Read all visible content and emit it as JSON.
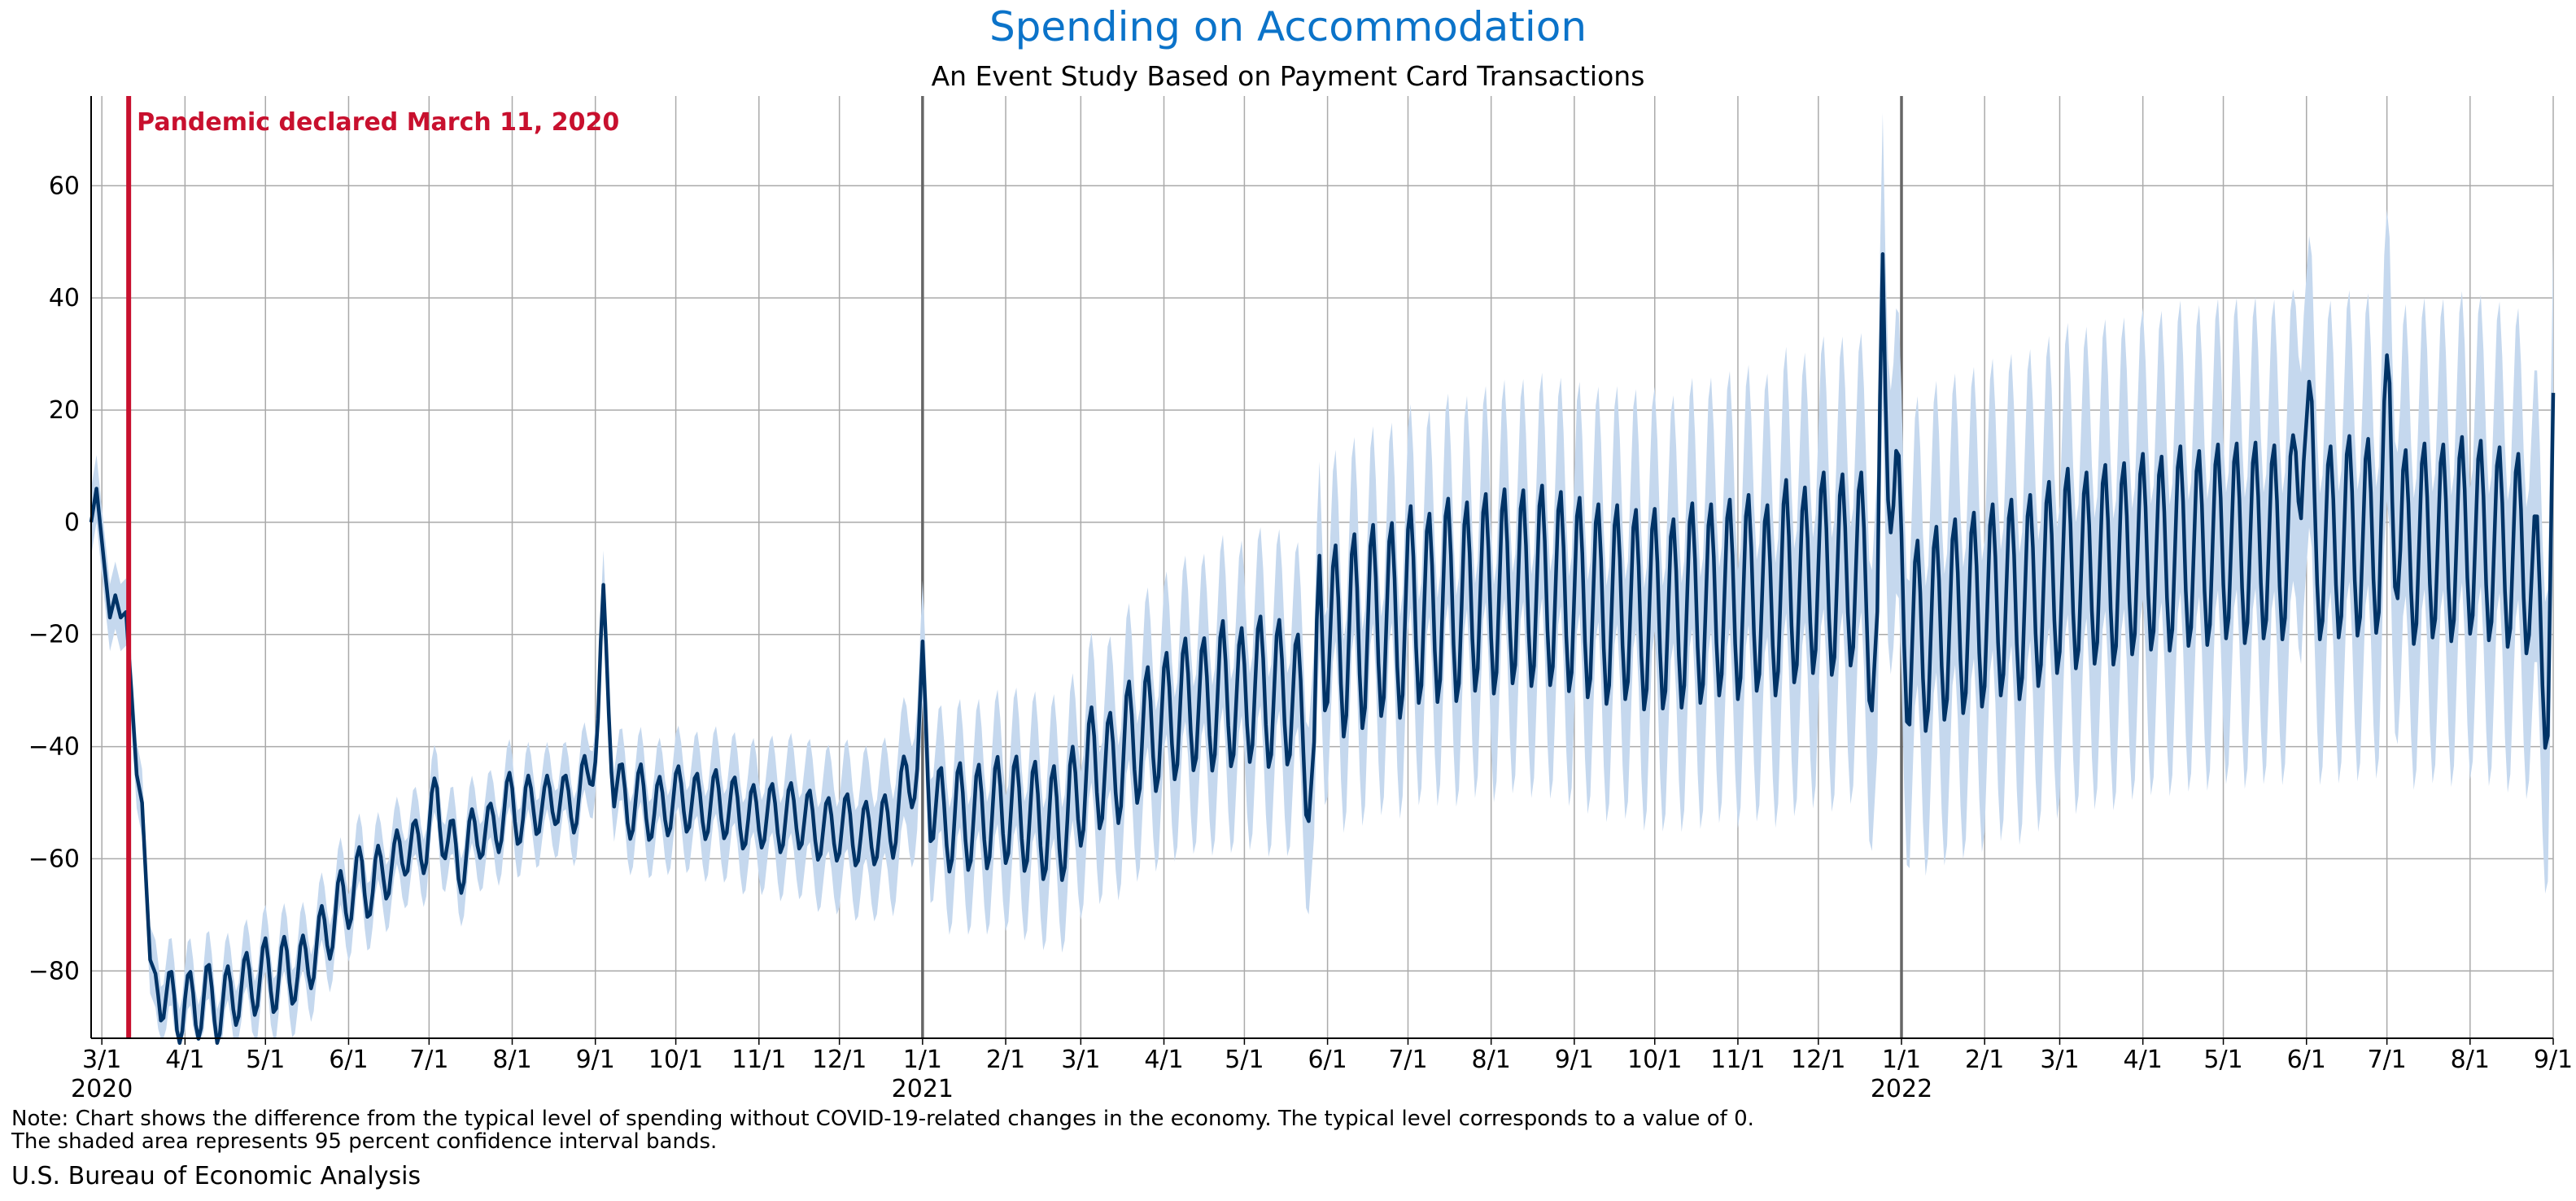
{
  "header": {
    "title": "Spending on Accommodation",
    "subtitle": "An Event Study Based on Payment Card Transactions"
  },
  "footer": {
    "note_line1": "Note: Chart shows the difference from the typical level of spending without COVID-19-related changes in the economy. The typical level corresponds to a value of 0.",
    "note_line2": "The shaded area represents 95 percent confidence interval bands.",
    "source": "U.S. Bureau of Economic Analysis"
  },
  "colors": {
    "title": "#0b73c9",
    "line": "#003366",
    "band": "#c5d8ee",
    "event_line": "#c8102e",
    "grid": "#aaaaaa",
    "year_line": "#666666"
  },
  "chart_data": {
    "type": "line",
    "title": "Spending on Accommodation",
    "subtitle": "An Event Study Based on Payment Card Transactions",
    "x_range": [
      "2020-02-26",
      "2022-09-01"
    ],
    "ylim": [
      -92,
      76
    ],
    "y_ticks": [
      -80,
      -60,
      -40,
      -20,
      0,
      20,
      40,
      60
    ],
    "x_ticks": [
      {
        "date": "2020-03-01",
        "label": "3/1",
        "year": "2020"
      },
      {
        "date": "2020-04-01",
        "label": "4/1"
      },
      {
        "date": "2020-05-01",
        "label": "5/1"
      },
      {
        "date": "2020-06-01",
        "label": "6/1"
      },
      {
        "date": "2020-07-01",
        "label": "7/1"
      },
      {
        "date": "2020-08-01",
        "label": "8/1"
      },
      {
        "date": "2020-09-01",
        "label": "9/1"
      },
      {
        "date": "2020-10-01",
        "label": "10/1"
      },
      {
        "date": "2020-11-01",
        "label": "11/1"
      },
      {
        "date": "2020-12-01",
        "label": "12/1"
      },
      {
        "date": "2021-01-01",
        "label": "1/1",
        "year": "2021"
      },
      {
        "date": "2021-02-01",
        "label": "2/1"
      },
      {
        "date": "2021-03-01",
        "label": "3/1"
      },
      {
        "date": "2021-04-01",
        "label": "4/1"
      },
      {
        "date": "2021-05-01",
        "label": "5/1"
      },
      {
        "date": "2021-06-01",
        "label": "6/1"
      },
      {
        "date": "2021-07-01",
        "label": "7/1"
      },
      {
        "date": "2021-08-01",
        "label": "8/1"
      },
      {
        "date": "2021-09-01",
        "label": "9/1"
      },
      {
        "date": "2021-10-01",
        "label": "10/1"
      },
      {
        "date": "2021-11-01",
        "label": "11/1"
      },
      {
        "date": "2021-12-01",
        "label": "12/1"
      },
      {
        "date": "2022-01-01",
        "label": "1/1",
        "year": "2022"
      },
      {
        "date": "2022-02-01",
        "label": "2/1"
      },
      {
        "date": "2022-03-01",
        "label": "3/1"
      },
      {
        "date": "2022-04-01",
        "label": "4/1"
      },
      {
        "date": "2022-05-01",
        "label": "5/1"
      },
      {
        "date": "2022-06-01",
        "label": "6/1"
      },
      {
        "date": "2022-07-01",
        "label": "7/1"
      },
      {
        "date": "2022-08-01",
        "label": "8/1"
      },
      {
        "date": "2022-09-01",
        "label": "9/1"
      }
    ],
    "year_lines": [
      "2021-01-01",
      "2022-01-01"
    ],
    "event": {
      "date": "2020-03-11",
      "label": "Pandemic declared March 11, 2020"
    },
    "grid": true,
    "series": [
      {
        "points": [
          [
            "2020-02-26",
            0
          ],
          [
            "2020-02-28",
            6
          ],
          [
            "2020-03-02",
            -8
          ],
          [
            "2020-03-04",
            -17
          ],
          [
            "2020-03-06",
            -13
          ],
          [
            "2020-03-08",
            -17
          ],
          [
            "2020-03-10",
            -16
          ],
          [
            "2020-03-12",
            -30
          ],
          [
            "2020-03-14",
            -45
          ],
          [
            "2020-03-16",
            -50
          ],
          [
            "2020-03-19",
            -78
          ],
          [
            "2020-03-23",
            -83
          ],
          [
            "2020-03-26",
            -85
          ],
          [
            "2020-03-29",
            -88
          ],
          [
            "2020-04-01",
            -85
          ],
          [
            "2020-04-05",
            -87
          ],
          [
            "2020-04-09",
            -84
          ],
          [
            "2020-04-13",
            -87
          ],
          [
            "2020-04-17",
            -85
          ],
          [
            "2020-04-22",
            -83
          ],
          [
            "2020-04-27",
            -82
          ],
          [
            "2020-05-01",
            -80
          ],
          [
            "2020-05-05",
            -82
          ],
          [
            "2020-05-09",
            -79
          ],
          [
            "2020-05-13",
            -81
          ],
          [
            "2020-05-17",
            -78
          ],
          [
            "2020-05-21",
            -75
          ],
          [
            "2020-05-25",
            -72
          ],
          [
            "2020-05-29",
            -68
          ],
          [
            "2020-06-02",
            -66
          ],
          [
            "2020-06-06",
            -63
          ],
          [
            "2020-06-10",
            -66
          ],
          [
            "2020-06-14",
            -61
          ],
          [
            "2020-06-18",
            -62
          ],
          [
            "2020-06-22",
            -57
          ],
          [
            "2020-06-26",
            -59
          ],
          [
            "2020-06-30",
            -56
          ],
          [
            "2020-07-04",
            -50
          ],
          [
            "2020-07-08",
            -57
          ],
          [
            "2020-07-12",
            -61
          ],
          [
            "2020-07-16",
            -58
          ],
          [
            "2020-07-20",
            -54
          ],
          [
            "2020-07-24",
            -56
          ],
          [
            "2020-07-28",
            -52
          ],
          [
            "2020-08-01",
            -50
          ],
          [
            "2020-08-05",
            -53
          ],
          [
            "2020-08-09",
            -49
          ],
          [
            "2020-08-13",
            -52
          ],
          [
            "2020-08-17",
            -48
          ],
          [
            "2020-08-21",
            -51
          ],
          [
            "2020-08-25",
            -49
          ],
          [
            "2020-08-29",
            -47
          ],
          [
            "2020-09-02",
            -35
          ],
          [
            "2020-09-04",
            -17
          ],
          [
            "2020-09-08",
            -46
          ],
          [
            "2020-09-13",
            -51
          ],
          [
            "2020-09-18",
            -49
          ],
          [
            "2020-09-23",
            -52
          ],
          [
            "2020-09-28",
            -50
          ],
          [
            "2020-10-04",
            -49
          ],
          [
            "2020-10-10",
            -51
          ],
          [
            "2020-10-16",
            -50
          ],
          [
            "2020-10-22",
            -51
          ],
          [
            "2020-10-28",
            -53
          ],
          [
            "2020-11-03",
            -52
          ],
          [
            "2020-11-09",
            -53
          ],
          [
            "2020-11-15",
            -52
          ],
          [
            "2020-11-21",
            -54
          ],
          [
            "2020-11-27",
            -55
          ],
          [
            "2020-12-03",
            -54
          ],
          [
            "2020-12-09",
            -56
          ],
          [
            "2020-12-15",
            -55
          ],
          [
            "2020-12-21",
            -54
          ],
          [
            "2020-12-26",
            -46
          ],
          [
            "2020-12-30",
            -44
          ],
          [
            "2021-01-01",
            -30
          ],
          [
            "2021-01-04",
            -48
          ],
          [
            "2021-01-09",
            -54
          ],
          [
            "2021-01-14",
            -52
          ],
          [
            "2021-01-20",
            -53
          ],
          [
            "2021-01-26",
            -52
          ],
          [
            "2021-02-01",
            -51
          ],
          [
            "2021-02-07",
            -52
          ],
          [
            "2021-02-13",
            -53
          ],
          [
            "2021-02-18",
            -54
          ],
          [
            "2021-02-24",
            -53
          ],
          [
            "2021-03-01",
            -47
          ],
          [
            "2021-03-06",
            -43
          ],
          [
            "2021-03-12",
            -45
          ],
          [
            "2021-03-18",
            -40
          ],
          [
            "2021-03-24",
            -38
          ],
          [
            "2021-03-30",
            -36
          ],
          [
            "2021-04-05",
            -34
          ],
          [
            "2021-04-11",
            -32
          ],
          [
            "2021-04-17",
            -33
          ],
          [
            "2021-04-23",
            -30
          ],
          [
            "2021-04-29",
            -32
          ],
          [
            "2021-05-05",
            -29
          ],
          [
            "2021-05-11",
            -31
          ],
          [
            "2021-05-17",
            -30
          ],
          [
            "2021-05-23",
            -35
          ],
          [
            "2021-05-27",
            -50
          ],
          [
            "2021-05-29",
            -12
          ],
          [
            "2021-06-03",
            -22
          ],
          [
            "2021-06-09",
            -20
          ],
          [
            "2021-06-15",
            -19
          ],
          [
            "2021-06-21",
            -17
          ],
          [
            "2021-06-27",
            -18
          ],
          [
            "2021-07-03",
            -14
          ],
          [
            "2021-07-09",
            -16
          ],
          [
            "2021-07-15",
            -13
          ],
          [
            "2021-07-21",
            -15
          ],
          [
            "2021-07-27",
            -12
          ],
          [
            "2021-08-02",
            -13
          ],
          [
            "2021-08-08",
            -11
          ],
          [
            "2021-08-14",
            -12
          ],
          [
            "2021-08-20",
            -11
          ],
          [
            "2021-08-26",
            -12
          ],
          [
            "2021-09-02",
            -13
          ],
          [
            "2021-09-08",
            -14
          ],
          [
            "2021-09-14",
            -15
          ],
          [
            "2021-09-20",
            -14
          ],
          [
            "2021-09-26",
            -16
          ],
          [
            "2021-10-02",
            -15
          ],
          [
            "2021-10-08",
            -17
          ],
          [
            "2021-10-14",
            -14
          ],
          [
            "2021-10-20",
            -15
          ],
          [
            "2021-10-26",
            -13
          ],
          [
            "2021-11-01",
            -14
          ],
          [
            "2021-11-07",
            -12
          ],
          [
            "2021-11-13",
            -15
          ],
          [
            "2021-11-19",
            -10
          ],
          [
            "2021-11-25",
            -12
          ],
          [
            "2021-12-01",
            -8
          ],
          [
            "2021-12-07",
            -10
          ],
          [
            "2021-12-13",
            -8
          ],
          [
            "2021-12-19",
            -9
          ],
          [
            "2021-12-23",
            -30
          ],
          [
            "2021-12-25",
            40
          ],
          [
            "2021-12-29",
            3
          ],
          [
            "2022-01-01",
            -10
          ],
          [
            "2022-01-04",
            -22
          ],
          [
            "2022-01-09",
            -20
          ],
          [
            "2022-01-15",
            -18
          ],
          [
            "2022-01-21",
            -17
          ],
          [
            "2022-01-27",
            -16
          ],
          [
            "2022-02-02",
            -15
          ],
          [
            "2022-02-08",
            -13
          ],
          [
            "2022-02-14",
            -14
          ],
          [
            "2022-02-20",
            -12
          ],
          [
            "2022-02-26",
            -10
          ],
          [
            "2022-03-04",
            -8
          ],
          [
            "2022-03-10",
            -9
          ],
          [
            "2022-03-16",
            -7
          ],
          [
            "2022-03-22",
            -8
          ],
          [
            "2022-03-28",
            -6
          ],
          [
            "2022-04-03",
            -5
          ],
          [
            "2022-04-09",
            -6
          ],
          [
            "2022-04-15",
            -4
          ],
          [
            "2022-04-21",
            -5
          ],
          [
            "2022-04-27",
            -4
          ],
          [
            "2022-05-03",
            -3
          ],
          [
            "2022-05-09",
            -4
          ],
          [
            "2022-05-15",
            -3
          ],
          [
            "2022-05-21",
            -4
          ],
          [
            "2022-05-27",
            -2
          ],
          [
            "2022-05-31",
            25
          ],
          [
            "2022-06-04",
            -3
          ],
          [
            "2022-06-10",
            -4
          ],
          [
            "2022-06-16",
            -2
          ],
          [
            "2022-06-22",
            -3
          ],
          [
            "2022-06-28",
            -2
          ],
          [
            "2022-07-02",
            17
          ],
          [
            "2022-07-06",
            -5
          ],
          [
            "2022-07-12",
            -4
          ],
          [
            "2022-07-18",
            -3
          ],
          [
            "2022-07-24",
            -4
          ],
          [
            "2022-07-30",
            -2
          ],
          [
            "2022-08-05",
            -3
          ],
          [
            "2022-08-11",
            -4
          ],
          [
            "2022-08-17",
            -5
          ],
          [
            "2022-08-23",
            -6
          ],
          [
            "2022-08-27",
            -20
          ],
          [
            "2022-08-30",
            -24
          ],
          [
            "2022-09-01",
            9
          ]
        ]
      }
    ]
  }
}
